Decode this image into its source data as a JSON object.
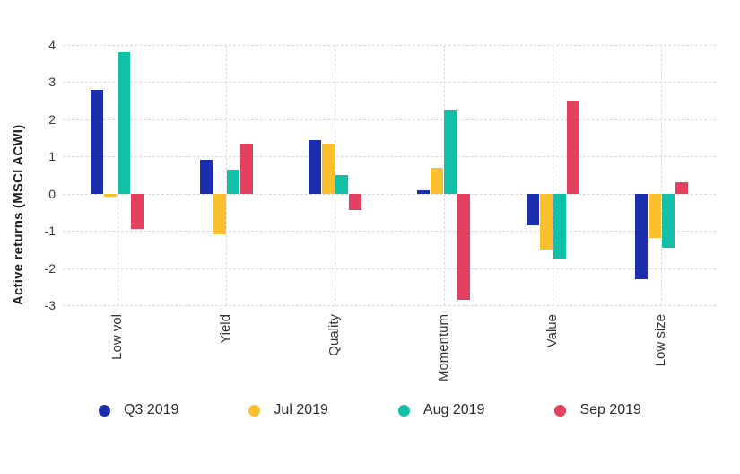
{
  "chart_data": {
    "type": "bar",
    "title": "",
    "xlabel": "",
    "ylabel": "Active returns (MSCI ACWI)",
    "categories": [
      "Low vol",
      "Yield",
      "Quality",
      "Momentum",
      "Value",
      "Low size"
    ],
    "series": [
      {
        "name": "Q3 2019",
        "color": "#1a2eae",
        "values": [
          2.8,
          0.9,
          1.45,
          0.1,
          -0.85,
          -2.3
        ]
      },
      {
        "name": "Jul 2019",
        "color": "#fcc02e",
        "values": [
          -0.08,
          -1.1,
          1.35,
          0.7,
          -1.5,
          -1.2
        ]
      },
      {
        "name": "Aug 2019",
        "color": "#10c1a7",
        "values": [
          3.8,
          0.65,
          0.5,
          2.25,
          -1.75,
          -1.45
        ]
      },
      {
        "name": "Sep 2019",
        "color": "#e4405f",
        "values": [
          -0.95,
          1.35,
          -0.45,
          -2.85,
          2.5,
          0.3
        ]
      }
    ],
    "yticks": [
      4,
      3,
      2,
      1,
      0,
      -1,
      -2,
      -3
    ],
    "ylim": [
      -3,
      4
    ],
    "grid": true,
    "grid_style": "dashed",
    "legend_position": "bottom"
  },
  "style": {
    "background": "#ffffff",
    "grid_color": "#d9d9d9",
    "text_color": "#333333"
  }
}
